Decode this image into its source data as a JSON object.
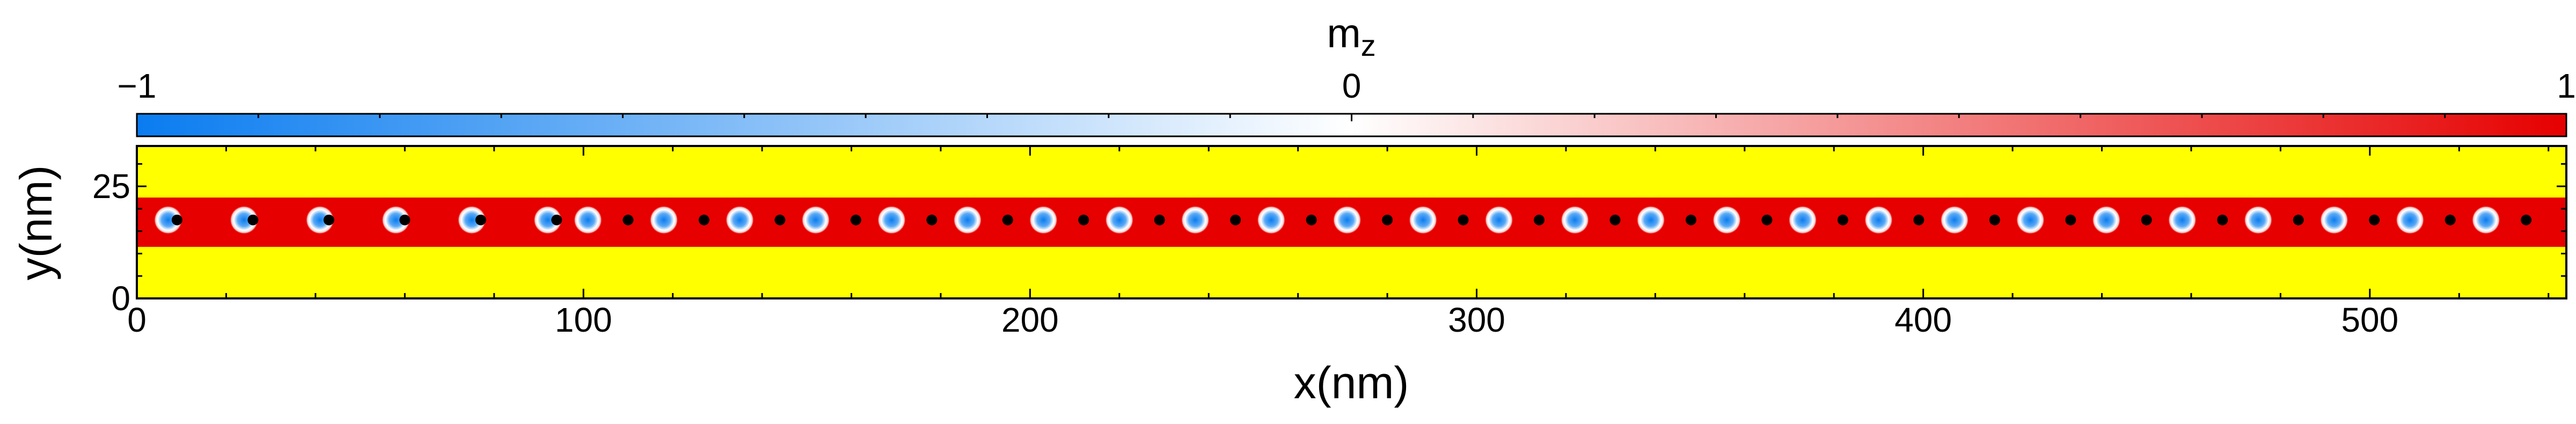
{
  "chart_data": {
    "type": "heatmap",
    "colorbar": {
      "title_main": "m",
      "title_sub": "z",
      "min": -1,
      "max": 1,
      "tick_labels": [
        "−1",
        "0",
        "1"
      ],
      "tick_values": [
        -1,
        0,
        1
      ],
      "colors": [
        "#0a7cf0",
        "#ffffff",
        "#e60000"
      ]
    },
    "xlabel": "x(nm)",
    "ylabel": "y(nm)",
    "xlim": [
      0,
      544
    ],
    "ylim": [
      0,
      34
    ],
    "xticks": [
      0,
      100,
      200,
      300,
      400,
      500
    ],
    "xtick_labels": [
      "0",
      "100",
      "200",
      "300",
      "400",
      "500"
    ],
    "yticks": [
      0,
      25
    ],
    "ytick_labels": [
      "0",
      "25"
    ],
    "background_color": "#ffff00",
    "track": {
      "y_range": [
        11.5,
        22.5
      ],
      "color": "#e60000"
    },
    "skyrmions": {
      "y": 17.5,
      "radius_nm": 3.2,
      "x": [
        7,
        24,
        41,
        58,
        75,
        92,
        101,
        118,
        135,
        152,
        169,
        186,
        203,
        220,
        237,
        254,
        271,
        288,
        305,
        322,
        339,
        356,
        373,
        390,
        407,
        424,
        441,
        458,
        475,
        492,
        509,
        526
      ],
      "markers_x": [
        9,
        26,
        43,
        60,
        77,
        94,
        110,
        127,
        144,
        161,
        178,
        195,
        212,
        229,
        246,
        263,
        280,
        297,
        314,
        331,
        348,
        365,
        382,
        399,
        416,
        433,
        450,
        467,
        484,
        501,
        518,
        535
      ],
      "marker_color": "#000000"
    }
  }
}
